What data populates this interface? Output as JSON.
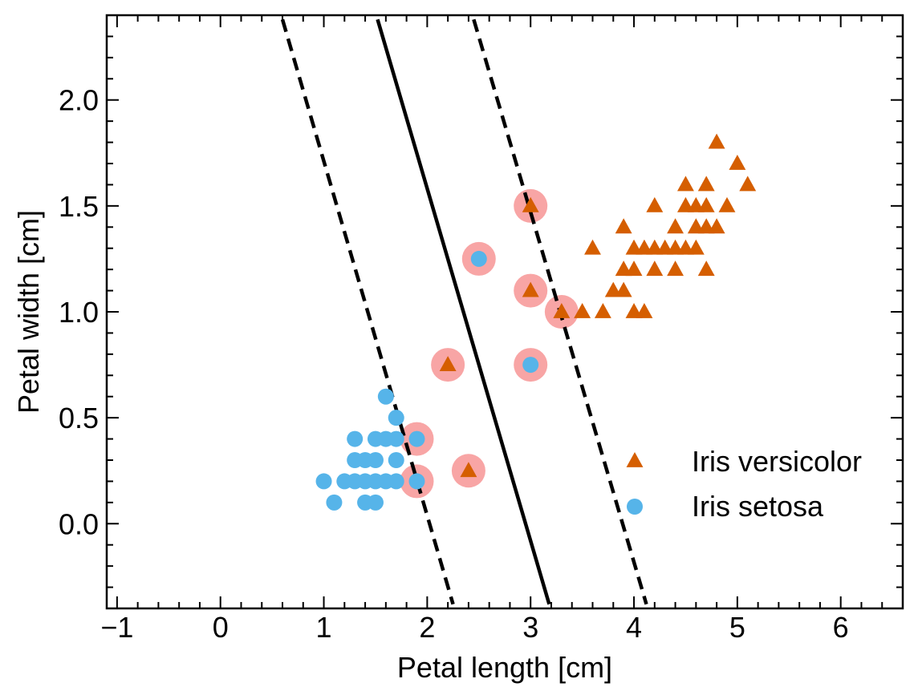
{
  "chart_data": {
    "type": "scatter",
    "xlabel": "Petal length [cm]",
    "ylabel": "Petal width [cm]",
    "xlim": [
      -1.1,
      6.6
    ],
    "ylim": [
      -0.4,
      2.4
    ],
    "xticks": [
      -1,
      0,
      1,
      2,
      3,
      4,
      5,
      6
    ],
    "xtick_labels": [
      "−1",
      "0",
      "1",
      "2",
      "3",
      "4",
      "5",
      "6"
    ],
    "yticks": [
      0.0,
      0.5,
      1.0,
      1.5,
      2.0
    ],
    "ytick_labels": [
      "0.0",
      "0.5",
      "1.0",
      "1.5",
      "2.0"
    ],
    "grid": false,
    "legend_position": "lower-right",
    "series": [
      {
        "name": "Iris versicolor",
        "marker": "triangle",
        "color": "#d55e00",
        "points": [
          [
            4.8,
            1.8
          ],
          [
            5.0,
            1.7
          ],
          [
            5.1,
            1.6
          ],
          [
            4.5,
            1.6
          ],
          [
            4.7,
            1.6
          ],
          [
            4.2,
            1.5
          ],
          [
            4.5,
            1.5
          ],
          [
            4.6,
            1.5
          ],
          [
            4.7,
            1.5
          ],
          [
            4.9,
            1.5
          ],
          [
            4.4,
            1.4
          ],
          [
            4.6,
            1.4
          ],
          [
            4.7,
            1.4
          ],
          [
            4.8,
            1.4
          ],
          [
            3.9,
            1.4
          ],
          [
            3.6,
            1.3
          ],
          [
            4.0,
            1.3
          ],
          [
            4.1,
            1.3
          ],
          [
            4.2,
            1.3
          ],
          [
            4.3,
            1.3
          ],
          [
            4.4,
            1.3
          ],
          [
            4.5,
            1.3
          ],
          [
            4.6,
            1.3
          ],
          [
            3.9,
            1.2
          ],
          [
            4.0,
            1.2
          ],
          [
            4.2,
            1.2
          ],
          [
            4.4,
            1.2
          ],
          [
            4.7,
            1.2
          ],
          [
            3.8,
            1.1
          ],
          [
            3.9,
            1.1
          ],
          [
            3.5,
            1.0
          ],
          [
            3.7,
            1.0
          ],
          [
            4.0,
            1.0
          ],
          [
            4.1,
            1.0
          ],
          [
            3.0,
            1.5
          ],
          [
            3.0,
            1.1
          ],
          [
            3.3,
            1.0
          ],
          [
            2.2,
            0.75
          ],
          [
            2.4,
            0.25
          ]
        ]
      },
      {
        "name": "Iris setosa",
        "marker": "circle",
        "color": "#56b4e9",
        "points": [
          [
            1.6,
            0.6
          ],
          [
            1.7,
            0.5
          ],
          [
            1.3,
            0.4
          ],
          [
            1.5,
            0.4
          ],
          [
            1.6,
            0.4
          ],
          [
            1.7,
            0.4
          ],
          [
            1.3,
            0.3
          ],
          [
            1.4,
            0.3
          ],
          [
            1.5,
            0.3
          ],
          [
            1.7,
            0.3
          ],
          [
            1.0,
            0.2
          ],
          [
            1.2,
            0.2
          ],
          [
            1.3,
            0.2
          ],
          [
            1.4,
            0.2
          ],
          [
            1.5,
            0.2
          ],
          [
            1.6,
            0.2
          ],
          [
            1.7,
            0.2
          ],
          [
            1.1,
            0.1
          ],
          [
            1.4,
            0.1
          ],
          [
            1.5,
            0.1
          ],
          [
            2.5,
            1.25
          ],
          [
            3.0,
            0.75
          ],
          [
            1.9,
            0.4
          ],
          [
            1.9,
            0.2
          ]
        ]
      }
    ],
    "support_vectors": {
      "color": "#f8a5a5",
      "points": [
        [
          3.0,
          1.5
        ],
        [
          3.0,
          1.1
        ],
        [
          3.3,
          1.0
        ],
        [
          2.5,
          1.25
        ],
        [
          3.0,
          0.75
        ],
        [
          2.2,
          0.75
        ],
        [
          1.9,
          0.4
        ],
        [
          1.9,
          0.2
        ],
        [
          2.4,
          0.25
        ]
      ]
    },
    "lines": [
      {
        "style": "dashed",
        "color": "#000000",
        "points": [
          [
            0.6,
            2.38
          ],
          [
            2.25,
            -0.38
          ]
        ]
      },
      {
        "style": "solid",
        "color": "#000000",
        "points": [
          [
            1.52,
            2.38
          ],
          [
            3.18,
            -0.38
          ]
        ]
      },
      {
        "style": "dashed",
        "color": "#000000",
        "points": [
          [
            2.45,
            2.38
          ],
          [
            4.12,
            -0.38
          ]
        ]
      }
    ]
  }
}
